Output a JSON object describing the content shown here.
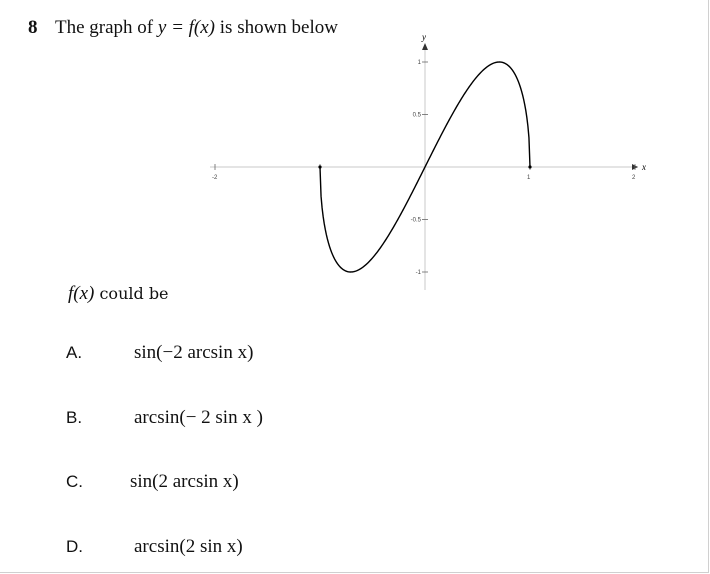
{
  "question": {
    "number": "8",
    "stem_prefix": "The graph of",
    "stem_function": "y = f(x)",
    "stem_suffix": "is shown below"
  },
  "graph": {
    "x_axis_label": "x",
    "y_axis_label": "y",
    "x_ticks": [
      {
        "value": -2,
        "label": "-2"
      },
      {
        "value": -1,
        "label": ""
      },
      {
        "value": 1,
        "label": "1"
      },
      {
        "value": 2,
        "label": "2"
      }
    ],
    "y_ticks": [
      {
        "value": 1,
        "label": "1"
      },
      {
        "value": 0.5,
        "label": "0.5"
      },
      {
        "value": -0.5,
        "label": "-0.5"
      },
      {
        "value": -1,
        "label": "-1"
      }
    ],
    "x_range": [
      -2,
      2
    ],
    "y_range": [
      -1,
      1
    ],
    "curve_color": "#000000",
    "axis_color": "#555555"
  },
  "prompt": {
    "function": "f(x)",
    "text": "could be"
  },
  "options": [
    {
      "letter": "A.",
      "expression": "sin(−2 arcsin x)"
    },
    {
      "letter": "B.",
      "expression": "arcsin(− 2 sin x )"
    },
    {
      "letter": "C.",
      "expression": "sin(2 arcsin x)"
    },
    {
      "letter": "D.",
      "expression": "arcsin(2 sin x)"
    }
  ]
}
